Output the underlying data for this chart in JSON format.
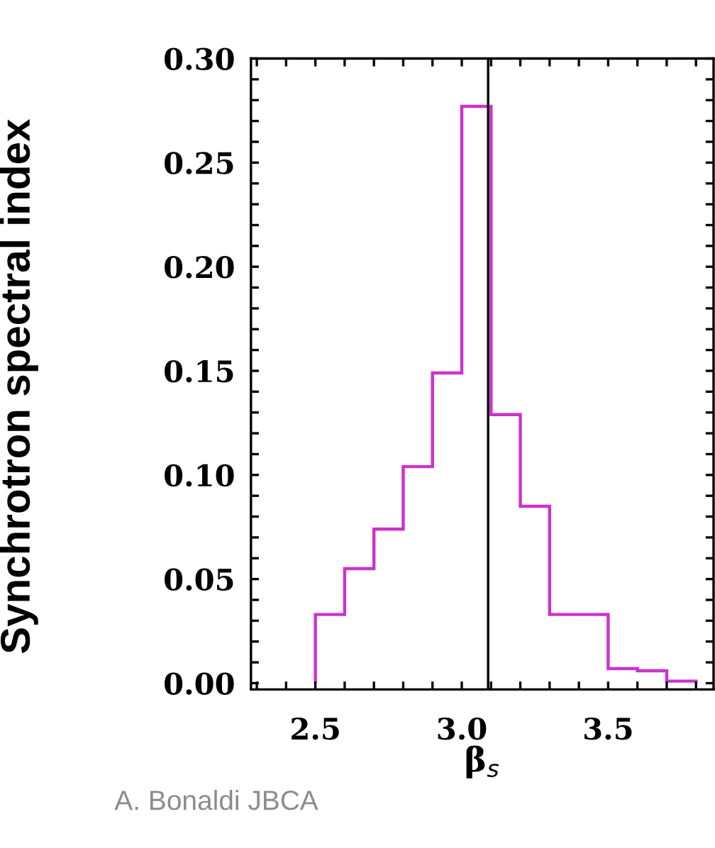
{
  "chart_data": {
    "type": "histogram",
    "ylabel": "Synchrotron spectral index",
    "xlabel": "β$_{s}$",
    "annotations": [
      "A. Bonaldi JBCA"
    ],
    "bins": [
      2.5,
      2.6,
      2.7,
      2.8,
      2.9,
      3.0,
      3.1,
      3.2,
      3.3,
      3.4,
      3.5,
      3.6,
      3.7,
      3.8
    ],
    "values": [
      0.033,
      0.055,
      0.074,
      0.104,
      0.149,
      0.277,
      0.129,
      0.085,
      0.033,
      0.033,
      0.007,
      0.006,
      0.001
    ],
    "color": "#cc33cc",
    "xlim": [
      2.28,
      3.86
    ],
    "ylim": [
      -0.003,
      0.3
    ],
    "xticks": [
      {
        "value": 2.3,
        "label": null
      },
      {
        "value": 2.4,
        "label": null
      },
      2.5,
      {
        "value": 2.6,
        "label": null
      },
      {
        "value": 2.7,
        "label": null
      },
      {
        "value": 2.8,
        "label": null
      },
      {
        "value": 2.9,
        "label": null
      },
      {
        "value": 3.0,
        "label": "3.0"
      },
      {
        "value": 3.1,
        "label": null
      },
      {
        "value": 3.2,
        "label": null
      },
      {
        "value": 3.3,
        "label": null
      },
      {
        "value": 3.4,
        "label": null
      },
      3.5,
      {
        "value": 3.6,
        "label": null
      },
      {
        "value": 3.7,
        "label": null
      },
      {
        "value": 3.8,
        "label": null
      }
    ],
    "yticks": [
      {
        "value": 0.0,
        "label": "0.00"
      },
      {
        "value": 0.01,
        "label": null
      },
      {
        "value": 0.02,
        "label": null
      },
      {
        "value": 0.03,
        "label": null
      },
      {
        "value": 0.04,
        "label": null
      },
      {
        "value": 0.05,
        "label": "0.05"
      },
      {
        "value": 0.06,
        "label": null
      },
      {
        "value": 0.07,
        "label": null
      },
      {
        "value": 0.08,
        "label": null
      },
      {
        "value": 0.09,
        "label": null
      },
      {
        "value": 0.1,
        "label": "0.10"
      },
      {
        "value": 0.11,
        "label": null
      },
      {
        "value": 0.12,
        "label": null
      },
      {
        "value": 0.13,
        "label": null
      },
      {
        "value": 0.14,
        "label": null
      },
      {
        "value": 0.15,
        "label": "0.15"
      },
      {
        "value": 0.16,
        "label": null
      },
      {
        "value": 0.17,
        "label": null
      },
      {
        "value": 0.18,
        "label": null
      },
      {
        "value": 0.19,
        "label": null
      },
      {
        "value": 0.2,
        "label": "0.20"
      },
      {
        "value": 0.21,
        "label": null
      },
      {
        "value": 0.22,
        "label": null
      },
      {
        "value": 0.23,
        "label": null
      },
      {
        "value": 0.24,
        "label": null
      },
      {
        "value": 0.25,
        "label": "0.25"
      },
      {
        "value": 0.26,
        "label": null
      },
      {
        "value": 0.27,
        "label": null
      },
      {
        "value": 0.28,
        "label": null
      },
      {
        "value": 0.29,
        "label": null
      },
      {
        "value": 0.3,
        "label": "0.30"
      }
    ],
    "ref_lines": [
      {
        "axis": "x",
        "value": 3.09,
        "color": "#000000"
      }
    ],
    "grid": false,
    "legend": false
  }
}
